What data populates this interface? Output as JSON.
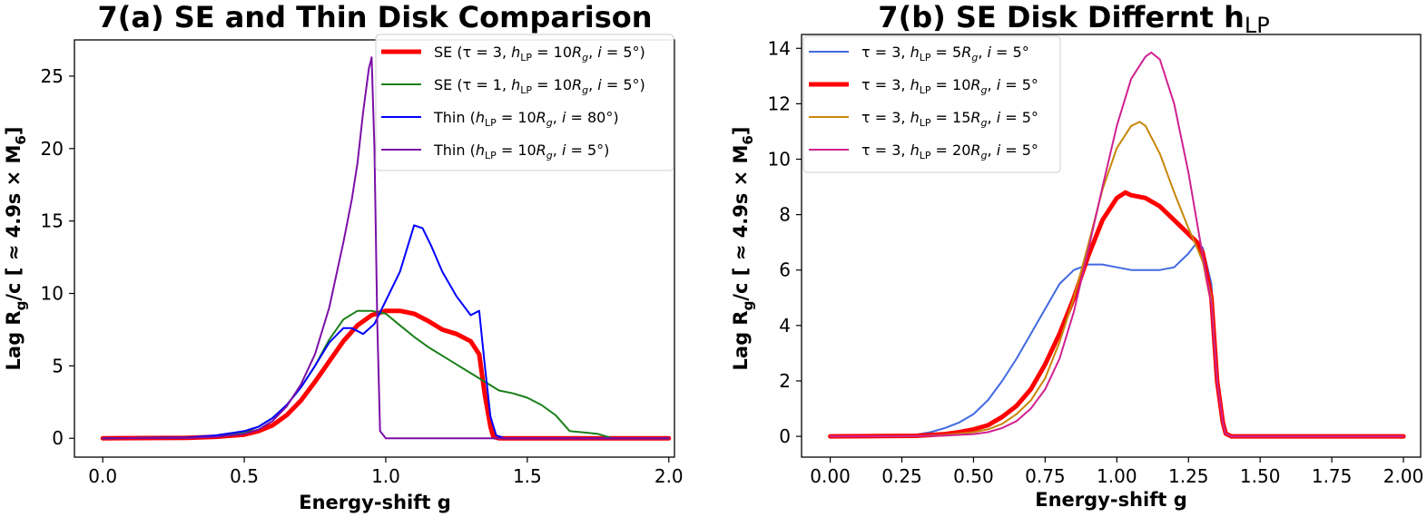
{
  "chart_data": [
    {
      "id": "a",
      "type": "line",
      "title": "7(a) SE and Thin Disk Comparison",
      "xlabel": "Energy-shift g",
      "ylabel_main": "Lag R",
      "ylabel_sub1": "g",
      "ylabel_mid": "/c [ ≈ 4.9s × M",
      "ylabel_sub2": "6",
      "ylabel_end": "]",
      "xlim": [
        -0.1,
        2.02
      ],
      "ylim": [
        -1.3,
        27.5
      ],
      "xticks": [
        0.0,
        0.5,
        1.0,
        1.5,
        2.0
      ],
      "xtick_labels": [
        "0.0",
        "0.5",
        "1.0",
        "1.5",
        "2.0"
      ],
      "yticks": [
        0,
        5,
        10,
        15,
        20,
        25
      ],
      "ytick_labels": [
        "0",
        "5",
        "10",
        "15",
        "20",
        "25"
      ],
      "legend_position": "upper right",
      "series": [
        {
          "name": "SE (τ = 3, h_LP = 10R_g, i = 5°)",
          "color": "#ff0000",
          "width": "thick",
          "legend": {
            "pre": "SE (",
            "a": "τ = 3, ",
            "b": "h",
            "bsub": "LP",
            "c": " = 10",
            "d": "R",
            "dsub": "g",
            "e": ", ",
            "f": "i",
            "g": " = 5°)"
          },
          "x": [
            0.0,
            0.3,
            0.4,
            0.5,
            0.55,
            0.6,
            0.65,
            0.7,
            0.75,
            0.8,
            0.85,
            0.9,
            0.95,
            1.0,
            1.05,
            1.1,
            1.15,
            1.2,
            1.25,
            1.3,
            1.33,
            1.35,
            1.37,
            1.38,
            1.4,
            1.6,
            2.0
          ],
          "y": [
            0.0,
            0.03,
            0.1,
            0.25,
            0.5,
            0.9,
            1.6,
            2.6,
            3.9,
            5.3,
            6.7,
            7.8,
            8.5,
            8.8,
            8.8,
            8.6,
            8.1,
            7.5,
            7.2,
            6.7,
            5.8,
            3.0,
            0.8,
            0.1,
            0.0,
            0.0,
            0.0
          ]
        },
        {
          "name": "SE (τ = 1, h_LP = 10R_g, i = 5°)",
          "color": "#1a7f1a",
          "width": "normal",
          "legend": {
            "pre": "SE (",
            "a": "τ = 1, ",
            "b": "h",
            "bsub": "LP",
            "c": " = 10",
            "d": "R",
            "dsub": "g",
            "e": ", ",
            "f": "i",
            "g": " = 5°)"
          },
          "x": [
            0.0,
            0.3,
            0.4,
            0.5,
            0.55,
            0.6,
            0.65,
            0.7,
            0.75,
            0.8,
            0.85,
            0.9,
            0.95,
            1.0,
            1.05,
            1.1,
            1.15,
            1.2,
            1.25,
            1.3,
            1.35,
            1.4,
            1.45,
            1.5,
            1.55,
            1.6,
            1.65,
            1.7,
            1.75,
            1.8,
            1.85,
            2.0
          ],
          "y": [
            0.0,
            0.05,
            0.15,
            0.4,
            0.8,
            1.4,
            2.3,
            3.5,
            5.0,
            6.8,
            8.2,
            8.8,
            8.8,
            8.6,
            7.8,
            7.0,
            6.3,
            5.7,
            5.1,
            4.5,
            3.9,
            3.3,
            3.1,
            2.8,
            2.3,
            1.6,
            0.5,
            0.4,
            0.3,
            0.0,
            0.0,
            0.0
          ]
        },
        {
          "name": "Thin (h_LP = 10R_g, i = 80°)",
          "color": "#0000ff",
          "width": "normal",
          "legend": {
            "pre": "Thin (",
            "a": "",
            "b": "h",
            "bsub": "LP",
            "c": " = 10",
            "d": "R",
            "dsub": "g",
            "e": ", ",
            "f": "i",
            "g": " = 80°)"
          },
          "x": [
            0.0,
            0.3,
            0.4,
            0.5,
            0.55,
            0.6,
            0.65,
            0.7,
            0.75,
            0.8,
            0.85,
            0.88,
            0.92,
            0.96,
            1.0,
            1.05,
            1.1,
            1.13,
            1.16,
            1.2,
            1.25,
            1.3,
            1.33,
            1.35,
            1.37,
            1.39,
            1.42,
            2.0
          ],
          "y": [
            0.0,
            0.05,
            0.2,
            0.5,
            0.8,
            1.4,
            2.3,
            3.5,
            5.0,
            6.6,
            7.6,
            7.6,
            7.2,
            7.9,
            9.5,
            11.5,
            14.7,
            14.5,
            13.3,
            11.5,
            9.8,
            8.5,
            8.8,
            5.0,
            1.5,
            0.2,
            0.0,
            0.0
          ]
        },
        {
          "name": "Thin (h_LP = 10R_g, i = 5°)",
          "color": "#7b0fa8",
          "width": "normal",
          "legend": {
            "pre": "Thin (",
            "a": "",
            "b": "h",
            "bsub": "LP",
            "c": " = 10",
            "d": "R",
            "dsub": "g",
            "e": ", ",
            "f": "i",
            "g": " = 5°)"
          },
          "x": [
            0.0,
            0.3,
            0.4,
            0.5,
            0.55,
            0.6,
            0.65,
            0.7,
            0.75,
            0.8,
            0.85,
            0.88,
            0.9,
            0.92,
            0.94,
            0.95,
            0.96,
            0.97,
            0.98,
            1.0,
            2.0
          ],
          "y": [
            0.0,
            0.02,
            0.1,
            0.3,
            0.6,
            1.2,
            2.2,
            3.7,
            5.8,
            9.0,
            13.5,
            16.5,
            19.0,
            22.5,
            25.5,
            26.3,
            20.0,
            8.0,
            0.5,
            0.0,
            0.0
          ]
        }
      ]
    },
    {
      "id": "b",
      "type": "line",
      "title": "7(b) SE Disk Differnt h",
      "title_sub": "LP",
      "xlabel": "Energy-shift g",
      "ylabel_main": "Lag R",
      "ylabel_sub1": "g",
      "ylabel_mid": "/c [ ≈ 4.9s × M",
      "ylabel_sub2": "6",
      "ylabel_end": "]",
      "xlim": [
        -0.1,
        2.06
      ],
      "ylim": [
        -0.75,
        14.5
      ],
      "xticks": [
        0.0,
        0.25,
        0.5,
        0.75,
        1.0,
        1.25,
        1.5,
        1.75,
        2.0
      ],
      "xtick_labels": [
        "0.00",
        "0.25",
        "0.50",
        "0.75",
        "1.00",
        "1.25",
        "1.50",
        "1.75",
        "2.00"
      ],
      "yticks": [
        0,
        2,
        4,
        6,
        8,
        10,
        12,
        14
      ],
      "ytick_labels": [
        "0",
        "2",
        "4",
        "6",
        "8",
        "10",
        "12",
        "14"
      ],
      "legend_position": "upper left",
      "series": [
        {
          "name": "τ = 3, h_LP = 5R_g, i = 5°",
          "color": "#4169e1",
          "width": "normal",
          "legend": {
            "pre": "",
            "a": "τ = 3, ",
            "b": "h",
            "bsub": "LP",
            "c": " = 5",
            "d": "R",
            "dsub": "g",
            "e": ", ",
            "f": "i",
            "g": " = 5°"
          },
          "x": [
            0.0,
            0.25,
            0.3,
            0.35,
            0.4,
            0.45,
            0.5,
            0.55,
            0.6,
            0.65,
            0.7,
            0.75,
            0.8,
            0.85,
            0.9,
            0.95,
            1.0,
            1.05,
            1.1,
            1.15,
            1.2,
            1.25,
            1.28,
            1.3,
            1.33,
            1.35,
            1.37,
            1.38,
            1.4,
            2.0
          ],
          "y": [
            0.0,
            0.02,
            0.06,
            0.15,
            0.3,
            0.5,
            0.8,
            1.3,
            2.0,
            2.8,
            3.7,
            4.6,
            5.5,
            6.0,
            6.2,
            6.2,
            6.1,
            6.0,
            6.0,
            6.0,
            6.1,
            6.6,
            7.0,
            6.8,
            5.5,
            2.0,
            0.5,
            0.1,
            0.0,
            0.0
          ]
        },
        {
          "name": "τ = 3, h_LP = 10R_g, i = 5°",
          "color": "#ff0000",
          "width": "thick",
          "legend": {
            "pre": "",
            "a": "τ = 3, ",
            "b": "h",
            "bsub": "LP",
            "c": " = 10",
            "d": "R",
            "dsub": "g",
            "e": ", ",
            "f": "i",
            "g": " = 5°"
          },
          "x": [
            0.0,
            0.3,
            0.4,
            0.45,
            0.5,
            0.55,
            0.6,
            0.65,
            0.7,
            0.75,
            0.8,
            0.85,
            0.9,
            0.95,
            1.0,
            1.03,
            1.05,
            1.1,
            1.15,
            1.2,
            1.25,
            1.28,
            1.3,
            1.33,
            1.35,
            1.37,
            1.38,
            1.4,
            2.0
          ],
          "y": [
            0.0,
            0.02,
            0.08,
            0.15,
            0.25,
            0.4,
            0.7,
            1.1,
            1.7,
            2.6,
            3.7,
            5.0,
            6.5,
            7.8,
            8.6,
            8.8,
            8.7,
            8.6,
            8.3,
            7.8,
            7.3,
            7.0,
            6.6,
            5.0,
            2.0,
            0.5,
            0.1,
            0.0,
            0.0
          ]
        },
        {
          "name": "τ = 3, h_LP = 15R_g, i = 5°",
          "color": "#c8860a",
          "width": "normal",
          "legend": {
            "pre": "",
            "a": "τ = 3, ",
            "b": "h",
            "bsub": "LP",
            "c": " = 15",
            "d": "R",
            "dsub": "g",
            "e": ", ",
            "f": "i",
            "g": " = 5°"
          },
          "x": [
            0.0,
            0.3,
            0.4,
            0.5,
            0.55,
            0.6,
            0.65,
            0.7,
            0.75,
            0.8,
            0.85,
            0.9,
            0.95,
            1.0,
            1.05,
            1.08,
            1.1,
            1.15,
            1.2,
            1.25,
            1.28,
            1.3,
            1.33,
            1.35,
            1.37,
            1.38,
            1.4,
            2.0
          ],
          "y": [
            0.0,
            0.01,
            0.05,
            0.15,
            0.25,
            0.45,
            0.8,
            1.3,
            2.1,
            3.4,
            5.0,
            6.9,
            8.9,
            10.4,
            11.2,
            11.35,
            11.2,
            10.2,
            8.8,
            7.5,
            6.8,
            6.3,
            5.0,
            2.0,
            0.5,
            0.1,
            0.0,
            0.0
          ]
        },
        {
          "name": "τ = 3, h_LP = 20R_g, i = 5°",
          "color": "#d02090",
          "width": "normal",
          "legend": {
            "pre": "",
            "a": "τ = 3, ",
            "b": "h",
            "bsub": "LP",
            "c": " = 20",
            "d": "R",
            "dsub": "g",
            "e": ", ",
            "f": "i",
            "g": " = 5°"
          },
          "x": [
            0.0,
            0.3,
            0.4,
            0.5,
            0.55,
            0.6,
            0.65,
            0.7,
            0.75,
            0.8,
            0.85,
            0.9,
            0.95,
            1.0,
            1.05,
            1.1,
            1.12,
            1.15,
            1.2,
            1.25,
            1.3,
            1.33,
            1.35,
            1.37,
            1.38,
            1.4,
            2.0
          ],
          "y": [
            0.0,
            0.01,
            0.03,
            0.08,
            0.15,
            0.3,
            0.55,
            1.0,
            1.7,
            2.8,
            4.5,
            6.7,
            9.0,
            11.2,
            12.9,
            13.7,
            13.85,
            13.6,
            12.0,
            9.5,
            6.5,
            4.8,
            2.0,
            0.5,
            0.1,
            0.0,
            0.0
          ]
        }
      ]
    }
  ]
}
